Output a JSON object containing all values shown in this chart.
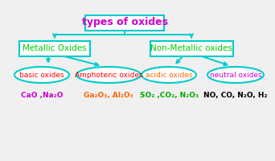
{
  "bg_color": "#f0f0f0",
  "title": "types of oxides",
  "title_color": "#cc00cc",
  "title_box_edge": "#00cccc",
  "title_box_face": "#ffffff",
  "metallic_label": "Metallic Oxides",
  "metallic_label_color": "#00cc00",
  "metallic_box_edge": "#00cccc",
  "metallic_box_face": "#ffffff",
  "nonmetallic_label": "Non-Metallic oxides",
  "nonmetallic_label_color": "#00cc00",
  "nonmetallic_box_edge": "#00cccc",
  "nonmetallic_box_face": "#ffffff",
  "basic_label": "basic oxides",
  "basic_color": "#ff0000",
  "amphoteric_label": "Amphoteric oxides",
  "amphoteric_color": "#ff0000",
  "acidic_label": "acidic oxides",
  "acidic_color": "#ff6600",
  "neutral_label": "neutral oxides",
  "neutral_color": "#cc00cc",
  "ellipse_edge": "#00cccc",
  "ellipse_face": "#ffffff",
  "arrow_color": "#00cccc",
  "example_basic": "CaO ,Na₂O",
  "example_basic_color": "#cc00cc",
  "example_amphoteric": "Ga₂O₃, Al₂O₃",
  "example_amphoteric_color": "#ff6600",
  "example_acidic": "SO₂ ,CO₂, N₂O₃",
  "example_acidic_color": "#00aa00",
  "example_neutral": "NO, CO, N₂O, H₂",
  "example_neutral_color": "#000000"
}
